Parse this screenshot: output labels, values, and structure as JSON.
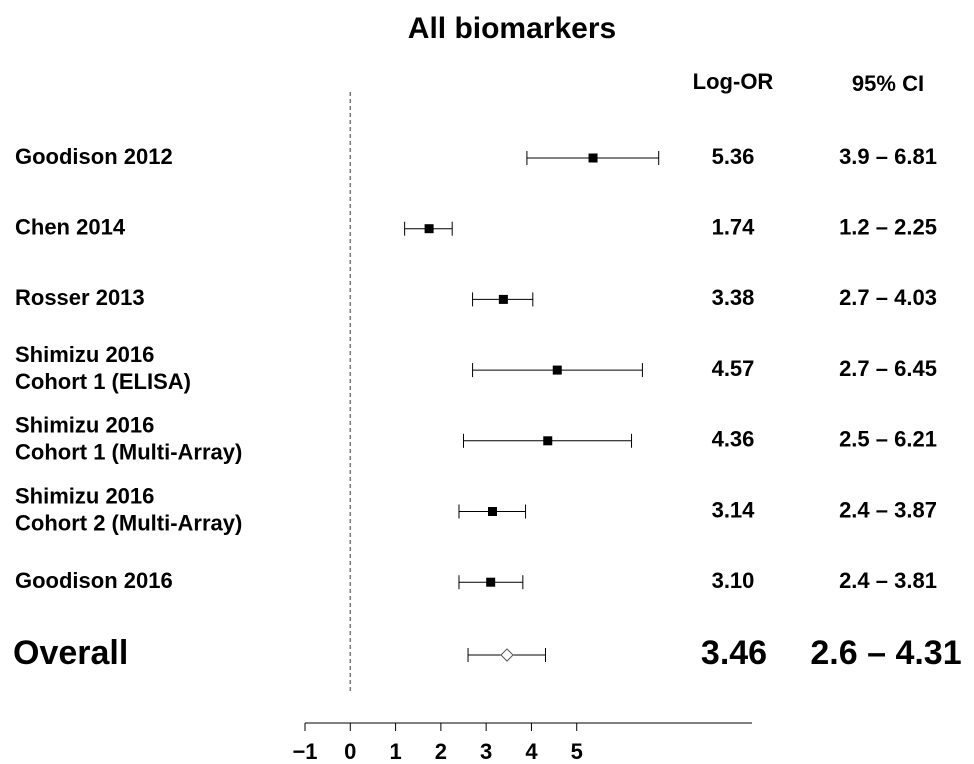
{
  "chart_data": {
    "type": "forest",
    "title": "All biomarkers",
    "columns": [
      "Log-OR",
      "95% CI"
    ],
    "categories": [
      [
        "Goodison 2012"
      ],
      [
        "Chen 2014"
      ],
      [
        "Rosser 2013"
      ],
      [
        "Shimizu 2016",
        "Cohort 1 (ELISA)"
      ],
      [
        "Shimizu 2016",
        "Cohort 1 (Multi-Array)"
      ],
      [
        "Shimizu 2016",
        "Cohort 2 (Multi-Array)"
      ],
      [
        "Goodison 2016"
      ]
    ],
    "values": [
      5.36,
      1.74,
      3.38,
      4.57,
      4.36,
      3.14,
      3.1
    ],
    "value_labels": [
      "5.36",
      "1.74",
      "3.38",
      "4.57",
      "4.36",
      "3.14",
      "3.10"
    ],
    "lower": [
      3.9,
      1.2,
      2.7,
      2.7,
      2.5,
      2.4,
      2.4
    ],
    "upper": [
      6.81,
      2.25,
      4.03,
      6.45,
      6.21,
      3.87,
      3.81
    ],
    "ci_labels": [
      "3.9 – 6.81",
      "1.2 – 2.25",
      "2.7 – 4.03",
      "2.7 – 6.45",
      "2.5 – 6.21",
      "2.4 – 3.87",
      "2.4 – 3.81"
    ],
    "overall": {
      "label": "Overall",
      "value": 3.46,
      "value_label": "3.46",
      "lower": 2.6,
      "upper": 4.31,
      "ci_label": "2.6 – 4.31"
    },
    "xlim": [
      -1,
      8.87
    ],
    "xticks": [
      {
        "value": -1,
        "label": "−1"
      },
      0,
      1,
      2,
      3,
      4,
      5
    ],
    "ref_line": 0,
    "color": "#000000"
  }
}
